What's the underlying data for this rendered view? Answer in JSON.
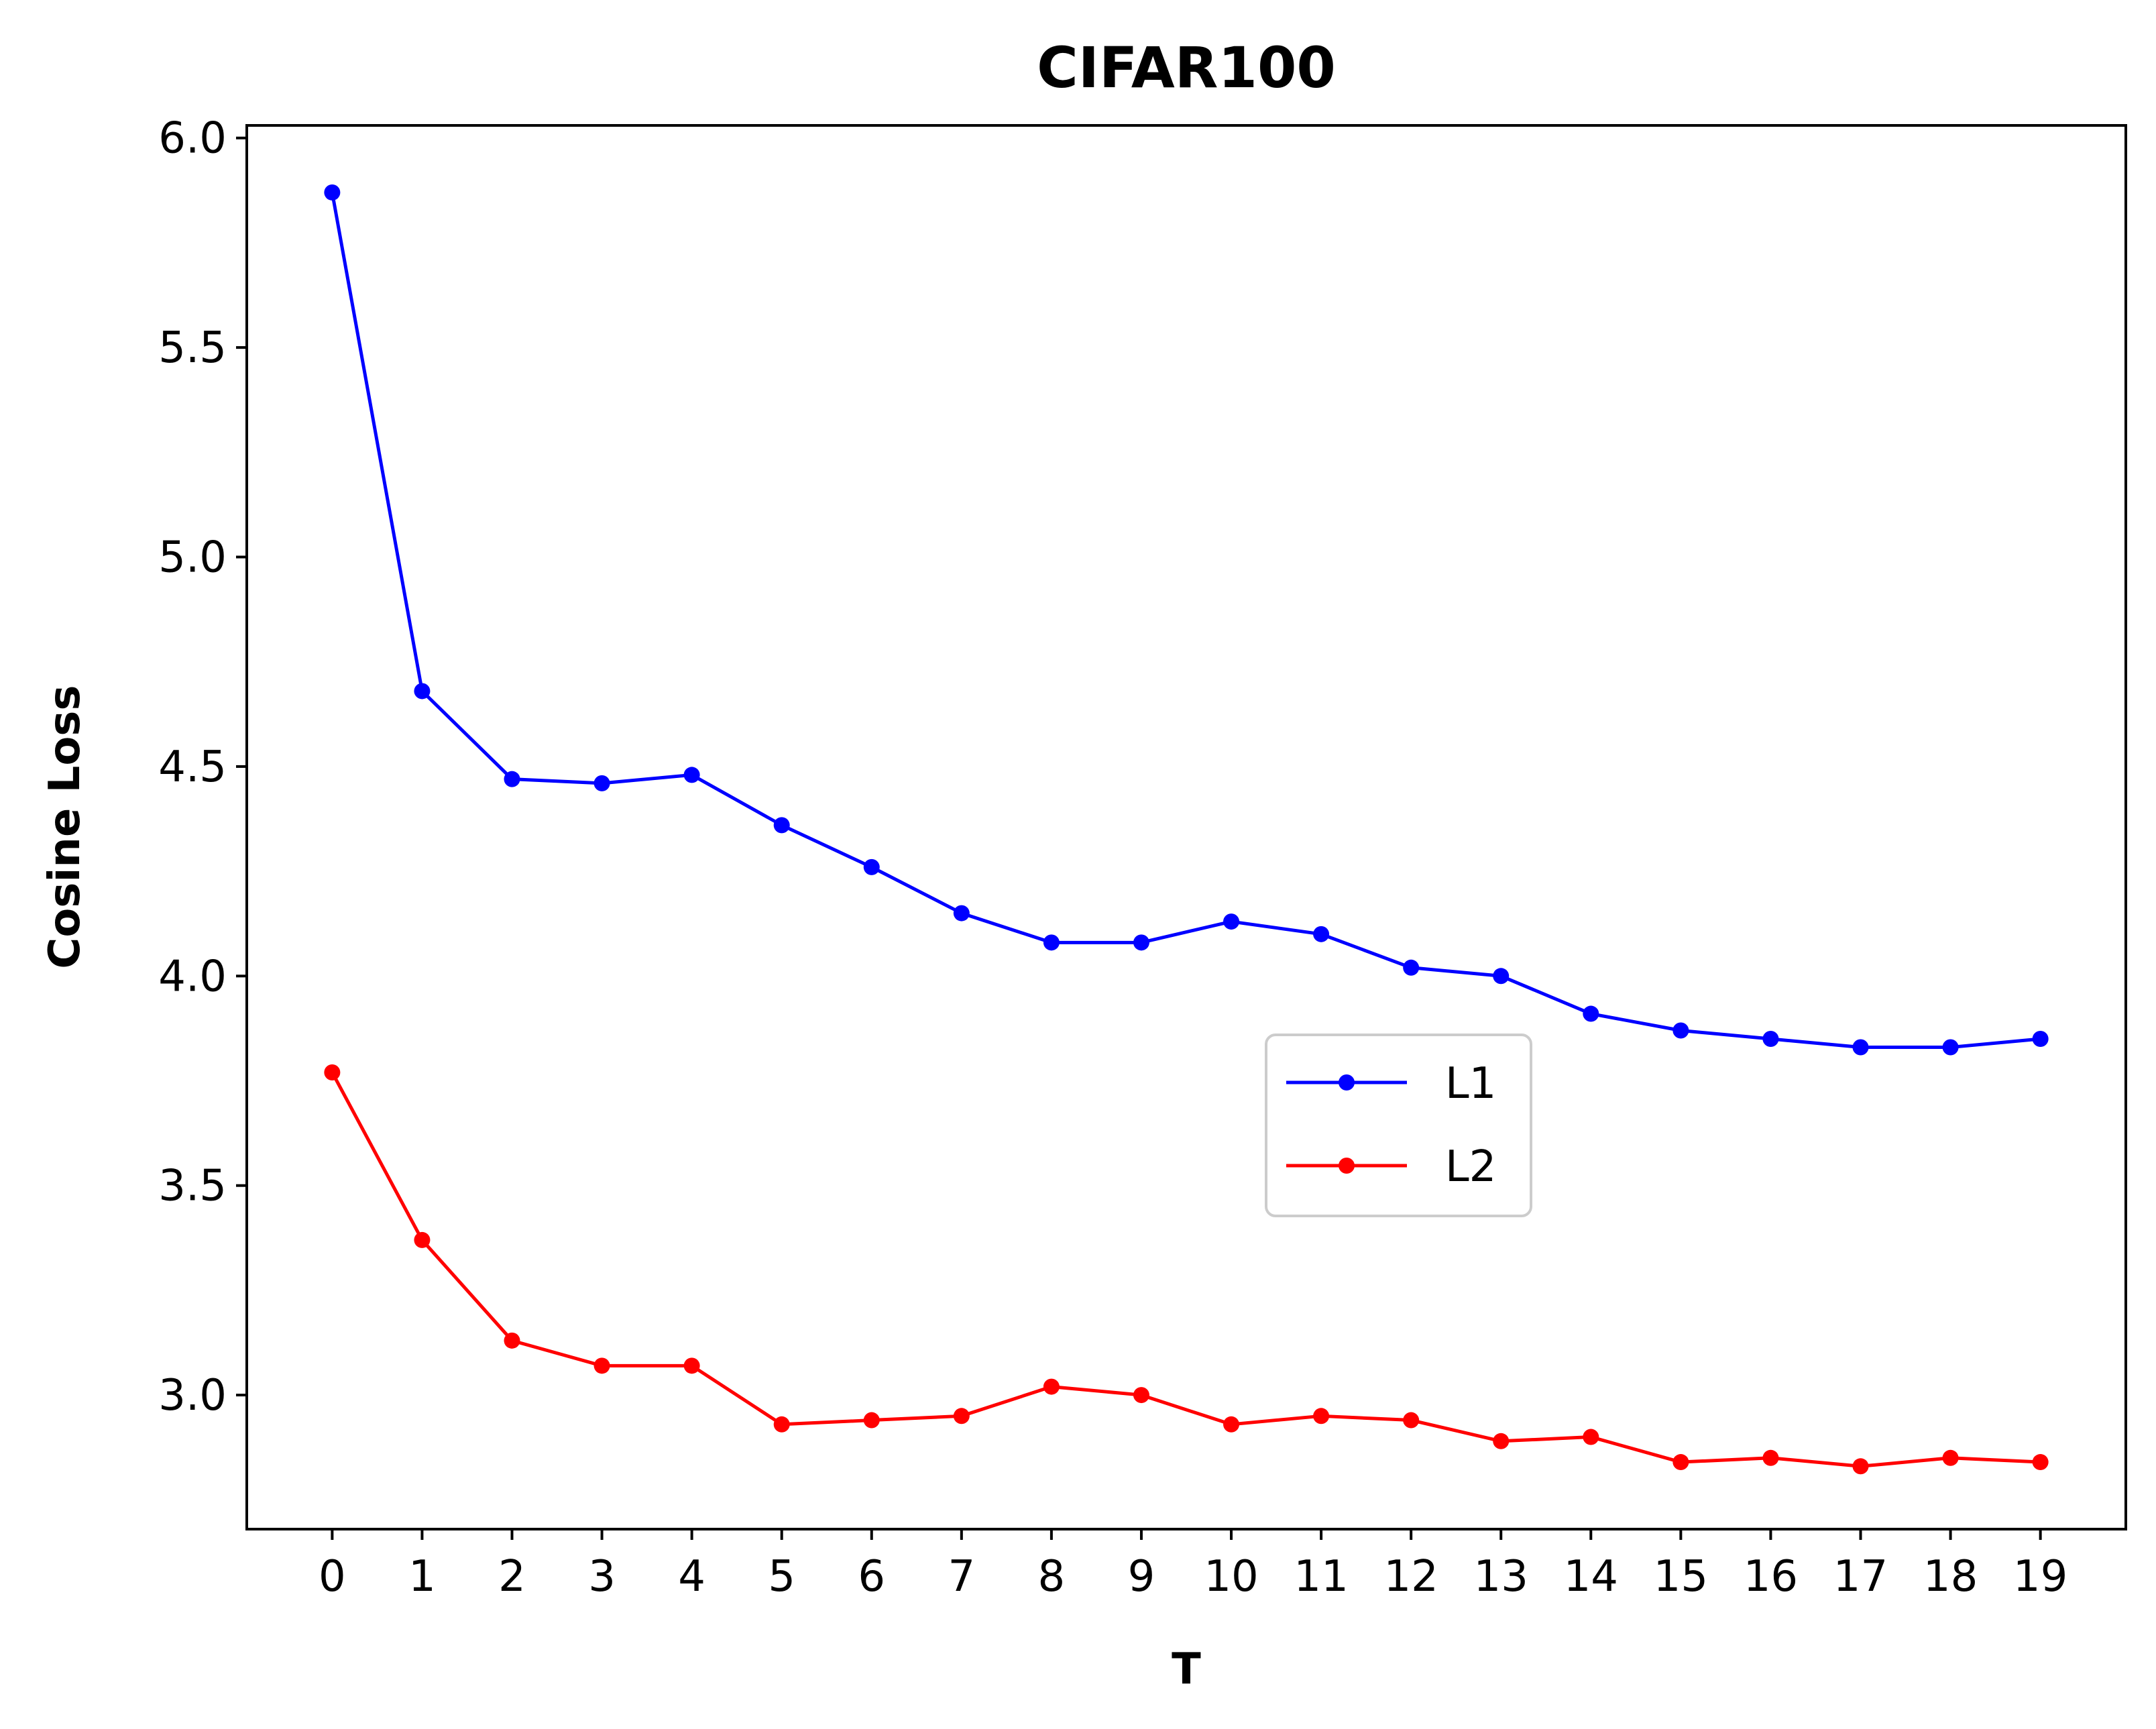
{
  "chart_data": {
    "type": "line",
    "title": "CIFAR100",
    "xlabel": "T",
    "ylabel": "Cosine Loss",
    "x": [
      0,
      1,
      2,
      3,
      4,
      5,
      6,
      7,
      8,
      9,
      10,
      11,
      12,
      13,
      14,
      15,
      16,
      17,
      18,
      19
    ],
    "xticks": [
      "0",
      "1",
      "2",
      "3",
      "4",
      "5",
      "6",
      "7",
      "8",
      "9",
      "10",
      "11",
      "12",
      "13",
      "14",
      "15",
      "16",
      "17",
      "18",
      "19"
    ],
    "xlim": [
      -0.95,
      19.95
    ],
    "ylim": [
      2.68,
      6.03
    ],
    "yticks": [
      3.0,
      3.5,
      4.0,
      4.5,
      5.0,
      5.5,
      6.0
    ],
    "ytick_labels": [
      "3.0",
      "3.5",
      "4.0",
      "4.5",
      "5.0",
      "5.5",
      "6.0"
    ],
    "grid": false,
    "legend_position": "center-right",
    "series": [
      {
        "name": "L1",
        "color": "#0000ff",
        "marker": "circle",
        "values": [
          5.87,
          4.68,
          4.47,
          4.46,
          4.48,
          4.36,
          4.26,
          4.15,
          4.08,
          4.08,
          4.13,
          4.1,
          4.02,
          4.0,
          3.91,
          3.87,
          3.85,
          3.83,
          3.83,
          3.85
        ]
      },
      {
        "name": "L2",
        "color": "#ff0000",
        "marker": "circle",
        "values": [
          3.77,
          3.37,
          3.13,
          3.07,
          3.07,
          2.93,
          2.94,
          2.95,
          3.02,
          3.0,
          2.93,
          2.95,
          2.94,
          2.89,
          2.9,
          2.84,
          2.85,
          2.83,
          2.85,
          2.84
        ]
      }
    ]
  }
}
